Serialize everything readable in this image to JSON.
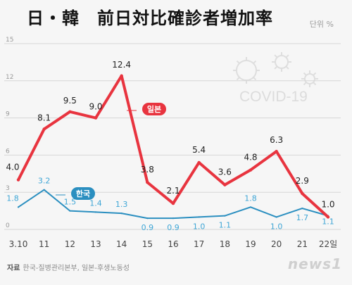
{
  "header": {
    "title": "日・韓　前日対比確診者増加率",
    "unit": "단위 %"
  },
  "footer": {
    "source_label": "자료",
    "source_text": "한국-질병관리본부, 일본-후생노동성",
    "logo": "news1"
  },
  "watermark": "COVID-19",
  "colors": {
    "japan": "#e8343f",
    "korea": "#2b8fc0",
    "korea_labels": "#3fa6d6",
    "background": "#f6f6f6",
    "grid": "#d6d6d6"
  },
  "chart_data": {
    "type": "line",
    "categories": [
      "3.10",
      "11",
      "12",
      "13",
      "14",
      "15",
      "16",
      "17",
      "18",
      "19",
      "20",
      "21",
      "22일"
    ],
    "ylim": [
      0,
      15
    ],
    "yticks": [
      "0",
      "3",
      "6",
      "9",
      "12",
      "15"
    ],
    "grid": true,
    "series": [
      {
        "name": "일본",
        "values": [
          4.0,
          8.1,
          9.5,
          9.0,
          12.4,
          3.8,
          2.1,
          5.4,
          3.6,
          4.8,
          6.3,
          2.9,
          1.0
        ],
        "labels": [
          "4.0",
          "8.1",
          "9.5",
          "9.0",
          "12.4",
          "3.8",
          "2.1",
          "5.4",
          "3.6",
          "4.8",
          "6.3",
          "2.9",
          "1.0"
        ]
      },
      {
        "name": "한국",
        "values": [
          1.8,
          3.2,
          1.5,
          1.4,
          1.3,
          0.9,
          0.9,
          1.0,
          1.1,
          1.8,
          1.0,
          1.7,
          1.1
        ],
        "labels": [
          "1.8",
          "3.2",
          "1.5",
          "1.4",
          "1.3",
          "0.9",
          "0.9",
          "1.0",
          "1.1",
          "1.8",
          "1.0",
          "1.7",
          "1.1"
        ]
      }
    ]
  }
}
